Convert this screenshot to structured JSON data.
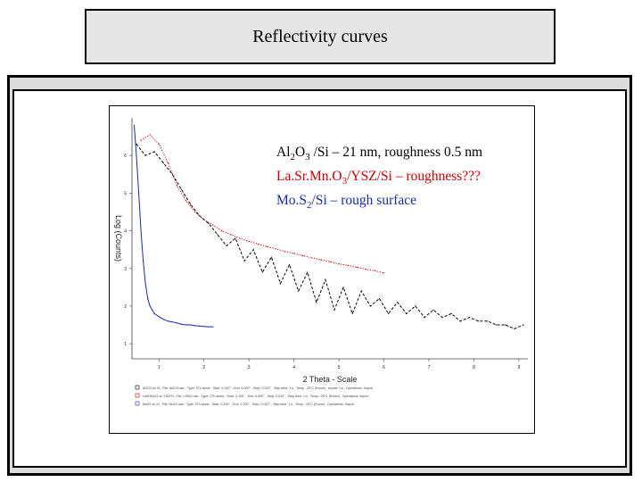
{
  "slide_title": "Reflectivity curves",
  "chart_data": {
    "type": "line",
    "title": "",
    "xlabel": "2 Theta - Scale",
    "ylabel": "Log (Counts)",
    "xlim": [
      0.4,
      9.2
    ],
    "ylim": [
      0.6,
      7.0
    ],
    "x_ticks": [
      1,
      2,
      3,
      4,
      5,
      6,
      7,
      8,
      9
    ],
    "y_ticks": [
      1,
      2,
      3,
      4,
      5,
      6
    ],
    "series": [
      {
        "name": "Al2O3 /Si – 21 nm, roughness 0.5 nm",
        "color": "#000000",
        "style": "dashed",
        "x": [
          0.5,
          0.7,
          0.9,
          1.1,
          1.3,
          1.5,
          1.7,
          1.9,
          2.1,
          2.3,
          2.5,
          2.7,
          2.9,
          3.1,
          3.3,
          3.5,
          3.7,
          3.9,
          4.1,
          4.3,
          4.5,
          4.7,
          4.9,
          5.1,
          5.3,
          5.5,
          5.7,
          5.9,
          6.1,
          6.3,
          6.5,
          6.7,
          6.9,
          7.1,
          7.3,
          7.5,
          7.7,
          7.9,
          8.1,
          8.3,
          8.5,
          8.7,
          8.9,
          9.1
        ],
        "y": [
          6.3,
          6.0,
          6.1,
          5.8,
          5.5,
          5.1,
          4.7,
          4.4,
          4.2,
          3.9,
          3.6,
          3.8,
          3.2,
          3.5,
          2.9,
          3.3,
          2.6,
          3.1,
          2.4,
          2.9,
          2.1,
          2.7,
          1.9,
          2.5,
          1.8,
          2.4,
          2.0,
          2.2,
          1.8,
          2.1,
          1.8,
          2.0,
          1.7,
          1.9,
          1.7,
          1.8,
          1.6,
          1.7,
          1.6,
          1.6,
          1.5,
          1.5,
          1.4,
          1.5
        ]
      },
      {
        "name": "LaSrMnO3/YSZ/Si – roughness???",
        "color": "#cc0000",
        "style": "dotted",
        "x": [
          0.6,
          0.8,
          1.0,
          1.2,
          1.4,
          1.6,
          1.8,
          2.0,
          2.2,
          2.4,
          2.6,
          2.8,
          3.0,
          3.2,
          3.4,
          3.6,
          3.8,
          4.0,
          4.2,
          4.4,
          4.6,
          4.8,
          5.0,
          5.2,
          5.4,
          5.6,
          5.8,
          6.0
        ],
        "y": [
          6.4,
          6.55,
          6.3,
          5.8,
          5.2,
          4.8,
          4.5,
          4.3,
          4.15,
          4.0,
          3.9,
          3.8,
          3.72,
          3.65,
          3.58,
          3.52,
          3.45,
          3.4,
          3.34,
          3.28,
          3.23,
          3.18,
          3.12,
          3.08,
          3.03,
          2.98,
          2.94,
          2.88
        ]
      },
      {
        "name": "MoS2/Si – rough surface",
        "color": "#1a2aa8",
        "style": "solid",
        "x": [
          0.45,
          0.5,
          0.55,
          0.6,
          0.65,
          0.7,
          0.75,
          0.8,
          0.85,
          0.9,
          1.0,
          1.1,
          1.2,
          1.3,
          1.4,
          1.5,
          1.6,
          1.7,
          1.8,
          1.9,
          2.0,
          2.1,
          2.2
        ],
        "y": [
          6.8,
          6.0,
          5.0,
          4.0,
          3.2,
          2.6,
          2.2,
          2.0,
          1.9,
          1.8,
          1.72,
          1.65,
          1.6,
          1.58,
          1.55,
          1.52,
          1.5,
          1.5,
          1.48,
          1.47,
          1.46,
          1.45,
          1.45
        ]
      }
    ]
  },
  "legend_lines": [
    {
      "parts": [
        "Al",
        "2",
        "O",
        "3",
        " /Si – 21 nm, roughness 0.5 nm"
      ],
      "color": "#000000"
    },
    {
      "parts": [
        "La.Sr.Mn.O",
        "3",
        "/YSZ/Si – roughness???"
      ],
      "color": "#cc0000"
    },
    {
      "parts": [
        "Mo.S",
        "2",
        "/Si  – rough surface"
      ],
      "color": "#1a2aa8"
    }
  ],
  "footnotes": [
    "Al2O3 on Si - File: Al2O3.raw - Type: 2Th alone - Start: 0.100° - End: 9.000° - Step: 0.010° - Step time: 1.s - Temp.: 25°C (Room) - Anode: Cu - Operations: Import",
    "LaSrMnO3 on YSZ/Si - File: LSMO.raw - Type: 2Th alone - Start: 0.100° - End: 6.000° - Step: 0.010° - Step time: 1.s - Temp.: 25°C (Room) - Operations: Import",
    "MoS2 on Si - File: MoS2.raw - Type: 2Th alone - Start: 0.100° - End: 2.200° - Step: 0.010° - Step time: 1.s - Temp.: 25°C (Room) - Operations: Import"
  ]
}
